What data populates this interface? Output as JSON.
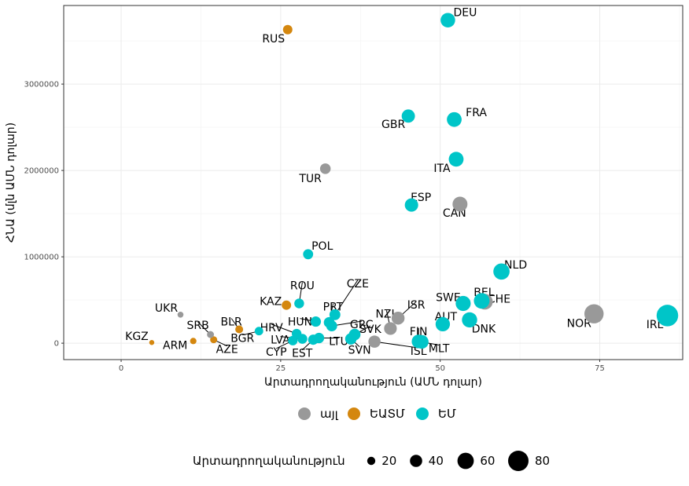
{
  "chart_data": {
    "type": "scatter",
    "title": "",
    "xlabel": "Արտադրողականություն (ԱՄՆ դոլար)",
    "ylabel": "ՀՆԱ (մլն ԱՄՆ դոլար)",
    "xlim": [
      -9,
      88
    ],
    "ylim": [
      -190000,
      3910000
    ],
    "x_ticks": [
      0,
      25,
      50,
      75
    ],
    "x_tick_labels": [
      "0",
      "25",
      "50",
      "75"
    ],
    "y_ticks": [
      0,
      1000000,
      2000000,
      3000000
    ],
    "y_tick_labels": [
      "0",
      "1000000",
      "2000000",
      "3000000"
    ],
    "grid": true,
    "legend_placement": "bottom",
    "colors": {
      "այլ": "#999999",
      "ԵԱՏՄ": "#d4870f",
      "ԵՄ": "#00c5c8"
    },
    "group_legend": {
      "title": "",
      "entries": [
        "այլ",
        "ԵԱՏՄ",
        "ԵՄ"
      ]
    },
    "size_legend": {
      "title": "Արտադրողականություն",
      "values": [
        20,
        40,
        60,
        80
      ],
      "labels": [
        "20",
        "40",
        "60",
        "80"
      ]
    },
    "points": [
      {
        "code": "DEU",
        "group": "ԵՄ",
        "x": 51.2,
        "y": 3740000
      },
      {
        "code": "RUS",
        "group": "ԵԱՏՄ",
        "x": 26.1,
        "y": 3630000
      },
      {
        "code": "GBR",
        "group": "ԵՄ",
        "x": 45.0,
        "y": 2630000
      },
      {
        "code": "FRA",
        "group": "ԵՄ",
        "x": 52.2,
        "y": 2590000
      },
      {
        "code": "ITA",
        "group": "ԵՄ",
        "x": 52.5,
        "y": 2130000
      },
      {
        "code": "TUR",
        "group": "այլ",
        "x": 32.0,
        "y": 2020000
      },
      {
        "code": "ESP",
        "group": "ԵՄ",
        "x": 45.5,
        "y": 1600000
      },
      {
        "code": "CAN",
        "group": "այլ",
        "x": 53.1,
        "y": 1610000
      },
      {
        "code": "POL",
        "group": "ԵՄ",
        "x": 29.3,
        "y": 1030000
      },
      {
        "code": "NLD",
        "group": "ԵՄ",
        "x": 59.6,
        "y": 830000
      },
      {
        "code": "IRL",
        "group": "ԵՄ",
        "x": 85.6,
        "y": 320000
      },
      {
        "code": "NOR",
        "group": "այլ",
        "x": 74.1,
        "y": 340000
      },
      {
        "code": "BEL",
        "group": "ԵՄ",
        "x": 56.5,
        "y": 490000
      },
      {
        "code": "CHE",
        "group": "այլ",
        "x": 57.0,
        "y": 480000
      },
      {
        "code": "SWE",
        "group": "ԵՄ",
        "x": 53.6,
        "y": 460000
      },
      {
        "code": "DNK",
        "group": "ԵՄ",
        "x": 54.6,
        "y": 270000
      },
      {
        "code": "AUT",
        "group": "ԵՄ",
        "x": 50.4,
        "y": 220000
      },
      {
        "code": "ISR",
        "group": "այլ",
        "x": 43.4,
        "y": 290000
      },
      {
        "code": "NZL",
        "group": "այլ",
        "x": 42.2,
        "y": 170000
      },
      {
        "code": "FIN",
        "group": "ԵՄ",
        "x": 46.6,
        "y": 20000
      },
      {
        "code": "MLT",
        "group": "ԵՄ",
        "x": 47.1,
        "y": 15000
      },
      {
        "code": "ISL",
        "group": "այլ",
        "x": 39.7,
        "y": 18000
      },
      {
        "code": "SVK",
        "group": "ԵՄ",
        "x": 36.6,
        "y": 100000
      },
      {
        "code": "SVN",
        "group": "ԵՄ",
        "x": 36.0,
        "y": 50000
      },
      {
        "code": "CZE",
        "group": "ԵՄ",
        "x": 33.5,
        "y": 330000
      },
      {
        "code": "PRT",
        "group": "ԵՄ",
        "x": 32.6,
        "y": 240000
      },
      {
        "code": "GRC",
        "group": "ԵՄ",
        "x": 33.0,
        "y": 200000
      },
      {
        "code": "HUN",
        "group": "ԵՄ",
        "x": 30.5,
        "y": 250000
      },
      {
        "code": "LTU",
        "group": "ԵՄ",
        "x": 31.0,
        "y": 60000
      },
      {
        "code": "EST",
        "group": "ԵՄ",
        "x": 30.1,
        "y": 40000
      },
      {
        "code": "LVA",
        "group": "ԵՄ",
        "x": 28.4,
        "y": 50000
      },
      {
        "code": "CYP",
        "group": "ԵՄ",
        "x": 26.9,
        "y": 30000
      },
      {
        "code": "HRV",
        "group": "ԵՄ",
        "x": 27.5,
        "y": 110000
      },
      {
        "code": "ROU",
        "group": "ԵՄ",
        "x": 27.9,
        "y": 460000
      },
      {
        "code": "KAZ",
        "group": "ԵԱՏՄ",
        "x": 25.9,
        "y": 440000
      },
      {
        "code": "BGR",
        "group": "ԵՄ",
        "x": 21.6,
        "y": 140000
      },
      {
        "code": "BLR",
        "group": "ԵԱՏՄ",
        "x": 18.5,
        "y": 160000
      },
      {
        "code": "SRB",
        "group": "այլ",
        "x": 14.0,
        "y": 100000
      },
      {
        "code": "AZE",
        "group": "ԵԱՏՄ",
        "x": 14.5,
        "y": 40000
      },
      {
        "code": "UKR",
        "group": "այլ",
        "x": 9.3,
        "y": 330000
      },
      {
        "code": "ARM",
        "group": "ԵԱՏՄ",
        "x": 11.3,
        "y": 25000
      },
      {
        "code": "KGZ",
        "group": "ԵԱՏՄ",
        "x": 4.8,
        "y": 8000
      }
    ]
  }
}
